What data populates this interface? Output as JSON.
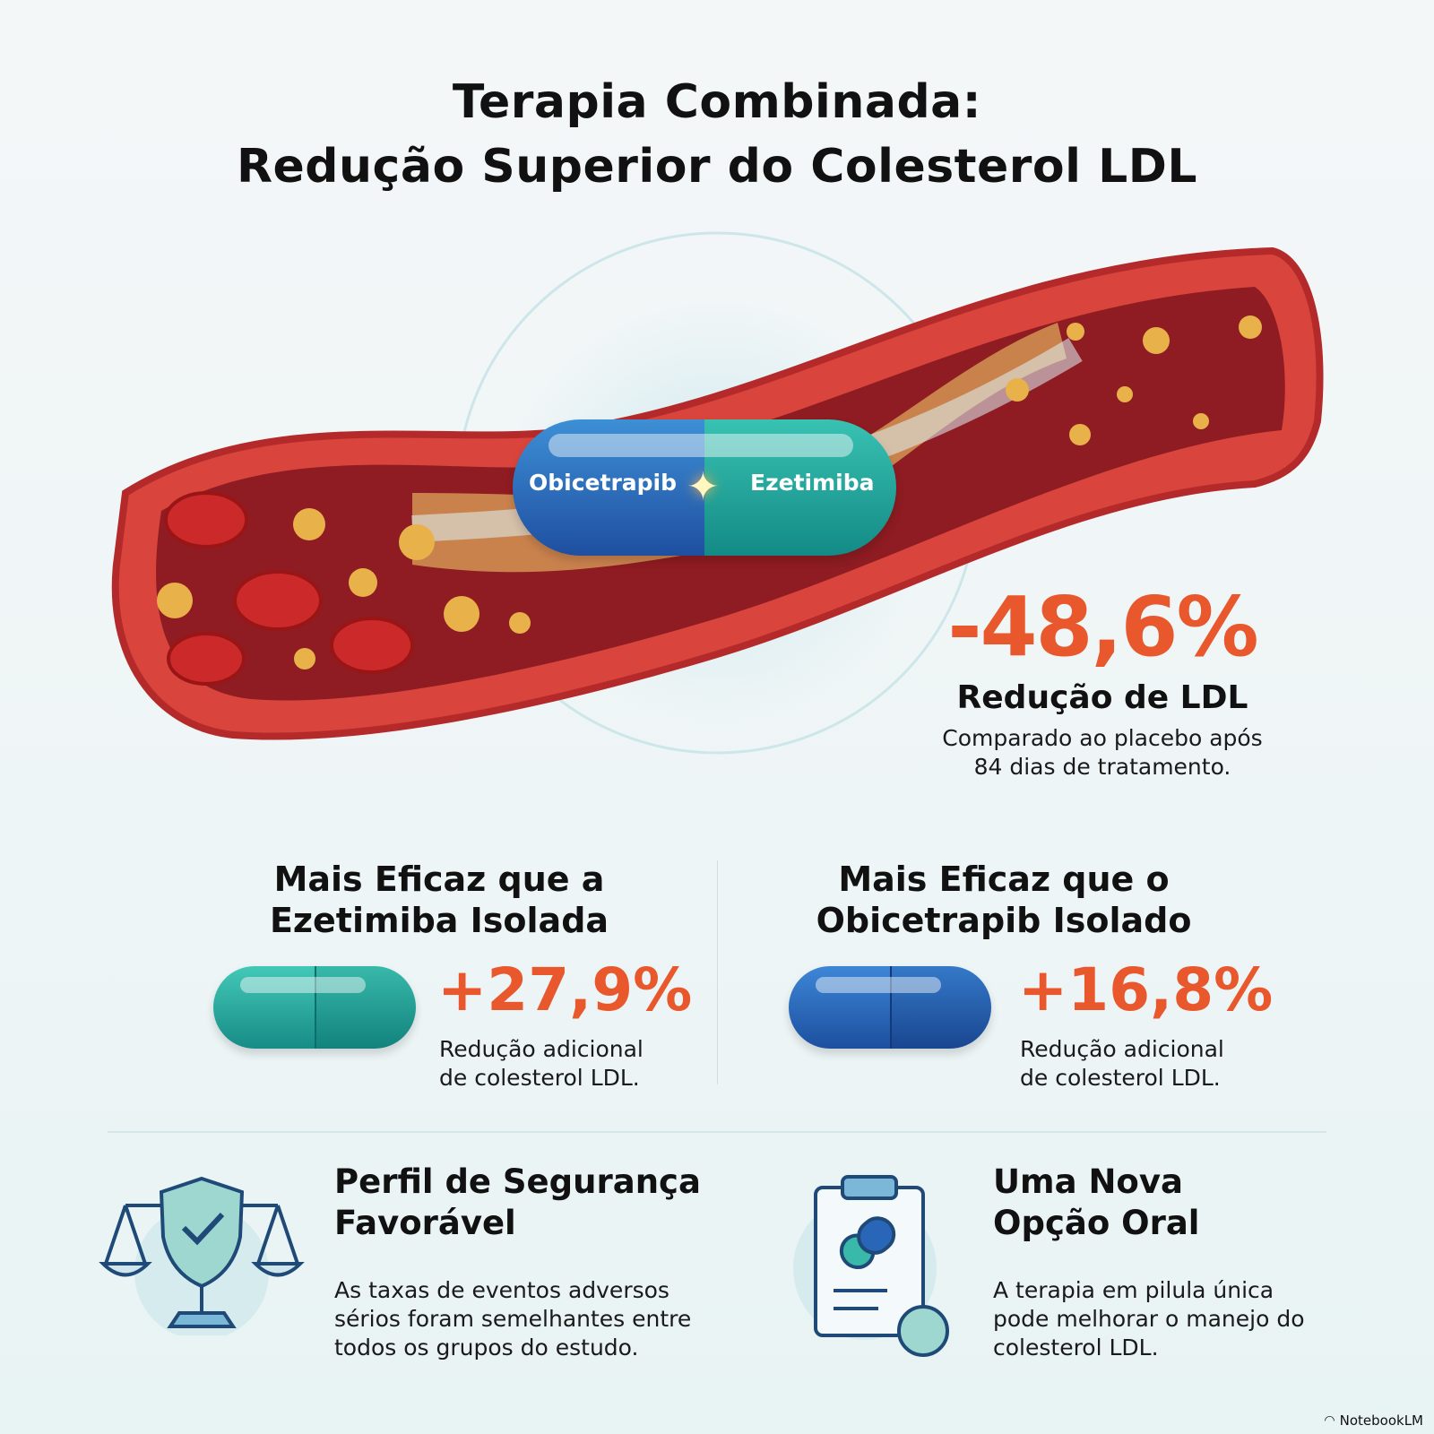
{
  "title": {
    "line1": "Terapia Combinada:",
    "line2": "Redução Superior do Colesterol LDL"
  },
  "hero": {
    "pill_left": "Obicetrapib",
    "pill_right": "Ezetimiba",
    "stat": "-48,6%",
    "stat_label": "Redução de LDL",
    "stat_desc_1": "Comparado ao placebo após",
    "stat_desc_2": "84 dias de tratamento."
  },
  "compare": [
    {
      "title1": "Mais Eficaz que a",
      "title2": "Ezetimiba Isolada",
      "stat": "+27,9%",
      "desc1": "Redução adicional",
      "desc2": "de colesterol LDL.",
      "pill_color": "#1fa79a"
    },
    {
      "title1": "Mais Eficaz que o",
      "title2": "Obicetrapib Isolado",
      "stat": "+16,8%",
      "desc1": "Redução adicional",
      "desc2": "de colesterol LDL.",
      "pill_color": "#2a66b8"
    }
  ],
  "features": [
    {
      "title1": "Perfil de Segurança",
      "title2": "Favorável",
      "desc1": "As taxas de eventos adversos",
      "desc2": "sérios foram semelhantes entre",
      "desc3": "todos os grupos do estudo.",
      "icon": "shield-scale-icon"
    },
    {
      "title1": "Uma Nova",
      "title2": "Opção Oral",
      "desc1": "A terapia em pilula única",
      "desc2": "pode melhorar o manejo do",
      "desc3": "colesterol LDL.",
      "icon": "clipboard-pill-icon"
    }
  ],
  "branding": "NotebookLM",
  "colors": {
    "accent": "#e8582c",
    "teal": "#1fa79a",
    "blue": "#2a66b8",
    "vessel": "#c62b2b"
  }
}
